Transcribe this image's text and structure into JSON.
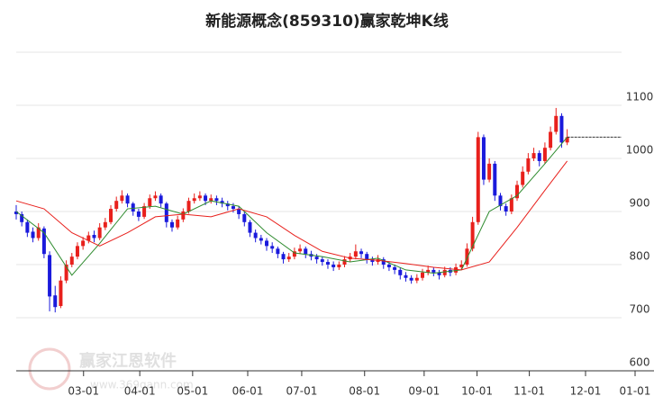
{
  "chart_data": {
    "type": "candlestick",
    "title": "新能源概念(859310)赢家乾坤K线",
    "watermark": {
      "brand": "赢家江恩软件",
      "url": "www.369gann.com"
    },
    "ylim": [
      600,
      1200
    ],
    "yticks": [
      600,
      700,
      800,
      900,
      1000,
      1100
    ],
    "xlim": [
      0,
      114.6
    ],
    "xticks": [
      {
        "value": 12.1,
        "label": "03-01"
      },
      {
        "value": 22.2,
        "label": "04-01"
      },
      {
        "value": 31.7,
        "label": "05-01"
      },
      {
        "value": 41.6,
        "label": "06-01"
      },
      {
        "value": 51.3,
        "label": "07-01"
      },
      {
        "value": 62.6,
        "label": "08-01"
      },
      {
        "value": 73.3,
        "label": "09-01"
      },
      {
        "value": 82.8,
        "label": "10-01"
      },
      {
        "value": 92.2,
        "label": "11-01"
      },
      {
        "value": 102.3,
        "label": "12-01"
      },
      {
        "value": 111.2,
        "label": "01-01"
      }
    ],
    "grid": true,
    "up_color": "#e8201c",
    "down_color": "#1a1adc",
    "candles": [
      [
        900,
        912,
        885,
        895
      ],
      [
        895,
        900,
        872,
        880
      ],
      [
        880,
        885,
        852,
        860
      ],
      [
        862,
        870,
        842,
        850
      ],
      [
        850,
        878,
        845,
        870
      ],
      [
        868,
        872,
        812,
        820
      ],
      [
        818,
        825,
        712,
        740
      ],
      [
        742,
        760,
        710,
        720
      ],
      [
        722,
        778,
        718,
        770
      ],
      [
        770,
        808,
        765,
        800
      ],
      [
        800,
        822,
        795,
        815
      ],
      [
        815,
        842,
        810,
        835
      ],
      [
        835,
        852,
        828,
        845
      ],
      [
        845,
        862,
        840,
        855
      ],
      [
        856,
        864,
        842,
        850
      ],
      [
        850,
        878,
        846,
        870
      ],
      [
        870,
        888,
        865,
        880
      ],
      [
        880,
        912,
        876,
        905
      ],
      [
        905,
        928,
        900,
        920
      ],
      [
        920,
        940,
        915,
        930
      ],
      [
        930,
        934,
        908,
        915
      ],
      [
        915,
        918,
        892,
        900
      ],
      [
        900,
        905,
        882,
        890
      ],
      [
        890,
        916,
        886,
        910
      ],
      [
        910,
        932,
        905,
        925
      ],
      [
        925,
        938,
        920,
        930
      ],
      [
        930,
        934,
        908,
        915
      ],
      [
        915,
        918,
        870,
        880
      ],
      [
        880,
        885,
        862,
        870
      ],
      [
        870,
        892,
        866,
        885
      ],
      [
        885,
        906,
        880,
        900
      ],
      [
        900,
        926,
        896,
        920
      ],
      [
        920,
        934,
        915,
        925
      ],
      [
        925,
        938,
        920,
        930
      ],
      [
        930,
        934,
        912,
        920
      ],
      [
        920,
        932,
        915,
        925
      ],
      [
        925,
        930,
        912,
        920
      ],
      [
        920,
        926,
        908,
        915
      ],
      [
        915,
        920,
        902,
        910
      ],
      [
        910,
        916,
        898,
        905
      ],
      [
        905,
        910,
        886,
        895
      ],
      [
        895,
        900,
        872,
        880
      ],
      [
        880,
        884,
        852,
        860
      ],
      [
        860,
        866,
        842,
        850
      ],
      [
        850,
        856,
        838,
        845
      ],
      [
        845,
        850,
        826,
        835
      ],
      [
        835,
        842,
        822,
        830
      ],
      [
        830,
        834,
        812,
        820
      ],
      [
        820,
        824,
        802,
        810
      ],
      [
        810,
        822,
        805,
        815
      ],
      [
        815,
        832,
        810,
        825
      ],
      [
        825,
        838,
        820,
        830
      ],
      [
        830,
        834,
        812,
        820
      ],
      [
        820,
        826,
        808,
        815
      ],
      [
        815,
        820,
        802,
        810
      ],
      [
        810,
        815,
        798,
        805
      ],
      [
        805,
        810,
        792,
        800
      ],
      [
        800,
        806,
        788,
        795
      ],
      [
        795,
        806,
        790,
        800
      ],
      [
        800,
        816,
        795,
        810
      ],
      [
        810,
        822,
        805,
        815
      ],
      [
        815,
        838,
        810,
        825
      ],
      [
        825,
        830,
        812,
        820
      ],
      [
        820,
        824,
        802,
        810
      ],
      [
        810,
        815,
        798,
        805
      ],
      [
        805,
        818,
        800,
        810
      ],
      [
        810,
        814,
        792,
        800
      ],
      [
        800,
        805,
        788,
        795
      ],
      [
        795,
        800,
        782,
        790
      ],
      [
        790,
        795,
        772,
        780
      ],
      [
        780,
        786,
        768,
        775
      ],
      [
        775,
        780,
        764,
        770
      ],
      [
        770,
        782,
        765,
        775
      ],
      [
        775,
        792,
        770,
        785
      ],
      [
        785,
        798,
        780,
        790
      ],
      [
        790,
        795,
        778,
        785
      ],
      [
        785,
        790,
        772,
        780
      ],
      [
        780,
        796,
        776,
        790
      ],
      [
        790,
        795,
        778,
        785
      ],
      [
        785,
        802,
        780,
        795
      ],
      [
        795,
        808,
        790,
        800
      ],
      [
        800,
        840,
        796,
        830
      ],
      [
        830,
        890,
        825,
        880
      ],
      [
        880,
        1050,
        875,
        1040
      ],
      [
        1040,
        1045,
        950,
        960
      ],
      [
        960,
        1000,
        955,
        990
      ],
      [
        990,
        995,
        920,
        930
      ],
      [
        930,
        935,
        902,
        910
      ],
      [
        910,
        915,
        892,
        900
      ],
      [
        900,
        932,
        895,
        925
      ],
      [
        925,
        958,
        920,
        950
      ],
      [
        950,
        985,
        945,
        975
      ],
      [
        975,
        1010,
        970,
        1000
      ],
      [
        1000,
        1020,
        995,
        1010
      ],
      [
        1010,
        1015,
        985,
        995
      ],
      [
        995,
        1030,
        990,
        1020
      ],
      [
        1020,
        1060,
        1015,
        1050
      ],
      [
        1050,
        1095,
        1045,
        1080
      ],
      [
        1080,
        1085,
        1020,
        1030
      ],
      [
        1030,
        1055,
        1025,
        1040
      ]
    ],
    "lines": [
      {
        "color": "#2e8b2e",
        "x": [
          0,
          5,
          10,
          15,
          20,
          25,
          30,
          35,
          40,
          45,
          50,
          55,
          60,
          65,
          70,
          75,
          80,
          85,
          90,
          95,
          99
        ],
        "values": [
          900,
          860,
          780,
          840,
          905,
          910,
          895,
          920,
          910,
          860,
          822,
          815,
          805,
          812,
          790,
          784,
          790,
          900,
          930,
          990,
          1040
        ]
      },
      {
        "color": "#e8201c",
        "x": [
          0,
          5,
          10,
          15,
          20,
          25,
          30,
          35,
          40,
          45,
          50,
          55,
          60,
          65,
          70,
          75,
          80,
          85,
          90,
          95,
          99
        ],
        "values": [
          920,
          905,
          860,
          835,
          860,
          890,
          895,
          890,
          905,
          890,
          855,
          825,
          812,
          808,
          802,
          795,
          790,
          805,
          870,
          940,
          995
        ]
      }
    ],
    "reference_line": 1040
  }
}
